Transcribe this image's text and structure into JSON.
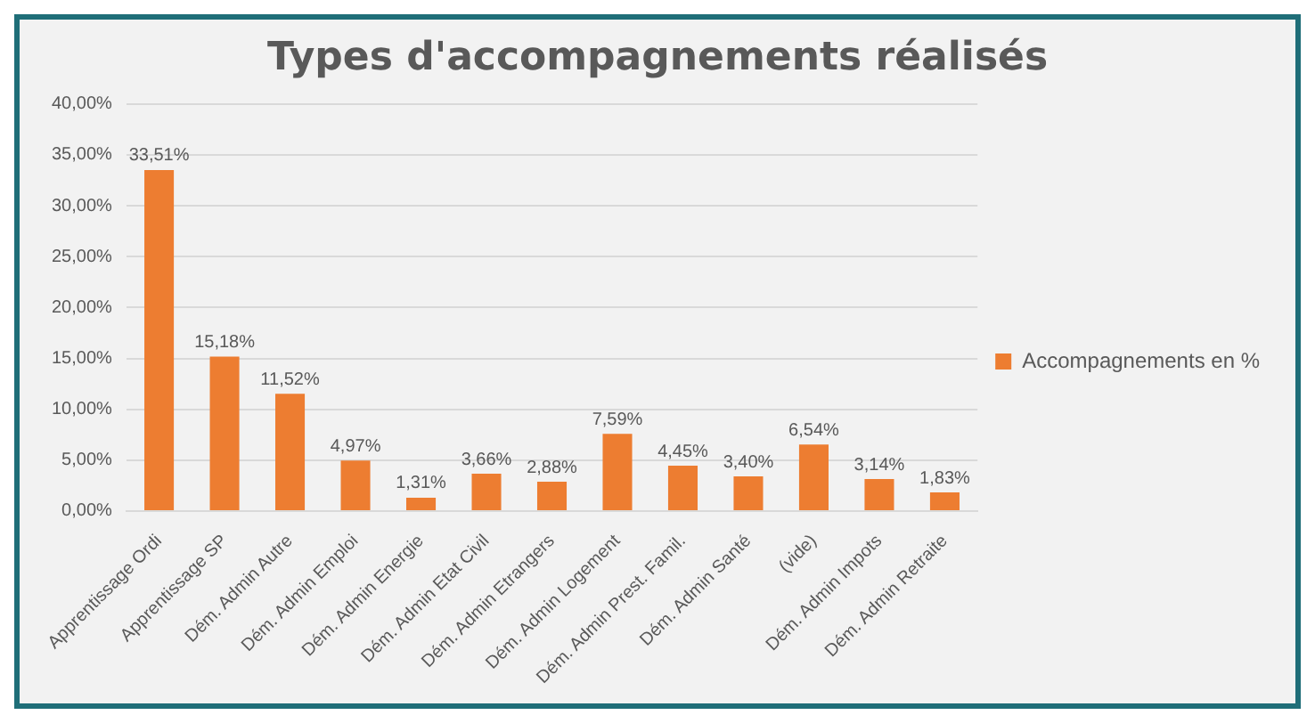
{
  "chart_data": {
    "type": "bar",
    "title": "Types d'accompagnements réalisés",
    "categories": [
      "Apprentissage Ordi",
      "Apprentissage SP",
      "Dém. Admin Autre",
      "Dém. Admin Emploi",
      "Dém. Admin Energie",
      "Dém. Admin Etat Civil",
      "Dém. Admin Etrangers",
      "Dém. Admin Logement",
      "Dém. Admin Prest. Famil.",
      "Dém. Admin Santé",
      "(vide)",
      "Dém. Admin Impots",
      "Dém. Admin Retraite"
    ],
    "series": [
      {
        "name": "Accompagnements en %",
        "color": "#ed7d31",
        "values": [
          33.51,
          15.18,
          11.52,
          4.97,
          1.31,
          3.66,
          2.88,
          7.59,
          4.45,
          3.4,
          6.54,
          3.14,
          1.83
        ],
        "value_labels": [
          "33,51%",
          "15,18%",
          "11,52%",
          "4,97%",
          "1,31%",
          "3,66%",
          "2,88%",
          "7,59%",
          "4,45%",
          "3,40%",
          "6,54%",
          "3,14%",
          "1,83%"
        ]
      }
    ],
    "ylim": [
      0,
      40
    ],
    "yticks": [
      {
        "value": 0,
        "label": "0,00%"
      },
      {
        "value": 5,
        "label": "5,00%"
      },
      {
        "value": 10,
        "label": "10,00%"
      },
      {
        "value": 15,
        "label": "15,00%"
      },
      {
        "value": 20,
        "label": "20,00%"
      },
      {
        "value": 25,
        "label": "25,00%"
      },
      {
        "value": 30,
        "label": "30,00%"
      },
      {
        "value": 35,
        "label": "35,00%"
      },
      {
        "value": 40,
        "label": "40,00%"
      }
    ],
    "grid": "y",
    "legend": "right"
  }
}
